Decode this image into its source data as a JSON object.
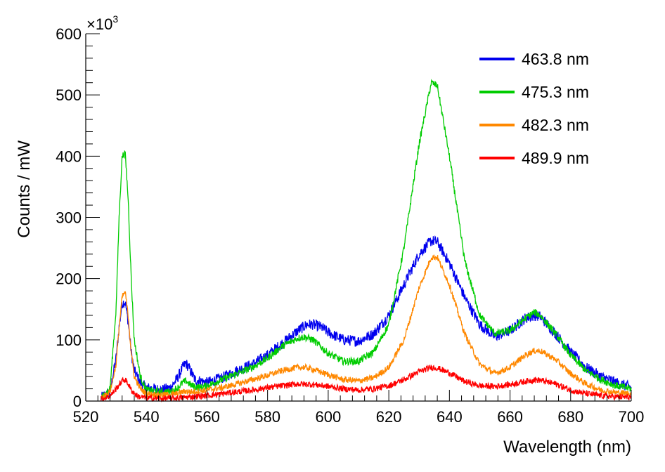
{
  "chart_data": {
    "type": "line",
    "xlabel": "Wavelength (nm)",
    "ylabel": "Counts / mW",
    "xlim": [
      520,
      700
    ],
    "ylim": [
      0,
      600
    ],
    "y_multiplier": {
      "base": "×10",
      "exponent": "3"
    },
    "x_ticks": [
      520,
      540,
      560,
      580,
      600,
      620,
      640,
      660,
      680,
      700
    ],
    "y_ticks": [
      0,
      100,
      200,
      300,
      400,
      500,
      600
    ],
    "grid": false,
    "legend_position": "top-right",
    "series": [
      {
        "name": "463.8 nm",
        "color": "#0000ee",
        "noise": 9,
        "points": [
          [
            525,
            5
          ],
          [
            528,
            15
          ],
          [
            530,
            70
          ],
          [
            531,
            120
          ],
          [
            532,
            160
          ],
          [
            533,
            162
          ],
          [
            534,
            130
          ],
          [
            535,
            80
          ],
          [
            536,
            50
          ],
          [
            538,
            30
          ],
          [
            540,
            22
          ],
          [
            545,
            18
          ],
          [
            548,
            22
          ],
          [
            550,
            35
          ],
          [
            552,
            55
          ],
          [
            553,
            62
          ],
          [
            554,
            55
          ],
          [
            556,
            35
          ],
          [
            560,
            30
          ],
          [
            565,
            38
          ],
          [
            570,
            50
          ],
          [
            575,
            60
          ],
          [
            580,
            75
          ],
          [
            585,
            95
          ],
          [
            590,
            115
          ],
          [
            593,
            125
          ],
          [
            595,
            125
          ],
          [
            598,
            120
          ],
          [
            600,
            112
          ],
          [
            605,
            100
          ],
          [
            610,
            98
          ],
          [
            615,
            110
          ],
          [
            620,
            140
          ],
          [
            625,
            190
          ],
          [
            630,
            240
          ],
          [
            634,
            262
          ],
          [
            636,
            260
          ],
          [
            640,
            225
          ],
          [
            645,
            170
          ],
          [
            650,
            125
          ],
          [
            655,
            105
          ],
          [
            660,
            115
          ],
          [
            665,
            135
          ],
          [
            668,
            140
          ],
          [
            670,
            138
          ],
          [
            675,
            110
          ],
          [
            680,
            80
          ],
          [
            685,
            55
          ],
          [
            690,
            40
          ],
          [
            695,
            30
          ],
          [
            700,
            22
          ]
        ]
      },
      {
        "name": "475.3 nm",
        "color": "#00cc00",
        "noise": 6,
        "points": [
          [
            525,
            5
          ],
          [
            528,
            20
          ],
          [
            530,
            150
          ],
          [
            531,
            300
          ],
          [
            532,
            400
          ],
          [
            533,
            405
          ],
          [
            534,
            330
          ],
          [
            535,
            200
          ],
          [
            536,
            100
          ],
          [
            538,
            40
          ],
          [
            540,
            18
          ],
          [
            545,
            15
          ],
          [
            548,
            15
          ],
          [
            550,
            20
          ],
          [
            552,
            30
          ],
          [
            553,
            33
          ],
          [
            555,
            25
          ],
          [
            558,
            22
          ],
          [
            560,
            25
          ],
          [
            565,
            35
          ],
          [
            570,
            45
          ],
          [
            575,
            55
          ],
          [
            580,
            70
          ],
          [
            585,
            90
          ],
          [
            590,
            103
          ],
          [
            592,
            105
          ],
          [
            595,
            100
          ],
          [
            600,
            78
          ],
          [
            605,
            65
          ],
          [
            610,
            65
          ],
          [
            615,
            80
          ],
          [
            620,
            125
          ],
          [
            625,
            250
          ],
          [
            630,
            420
          ],
          [
            634,
            520
          ],
          [
            636,
            515
          ],
          [
            640,
            400
          ],
          [
            645,
            230
          ],
          [
            650,
            140
          ],
          [
            655,
            110
          ],
          [
            660,
            115
          ],
          [
            665,
            135
          ],
          [
            668,
            145
          ],
          [
            670,
            140
          ],
          [
            675,
            110
          ],
          [
            680,
            75
          ],
          [
            685,
            50
          ],
          [
            690,
            35
          ],
          [
            695,
            25
          ],
          [
            700,
            20
          ]
        ]
      },
      {
        "name": "482.3 nm",
        "color": "#ff8800",
        "noise": 5,
        "points": [
          [
            525,
            5
          ],
          [
            528,
            15
          ],
          [
            530,
            60
          ],
          [
            531,
            120
          ],
          [
            532,
            170
          ],
          [
            533,
            178
          ],
          [
            534,
            140
          ],
          [
            535,
            80
          ],
          [
            536,
            40
          ],
          [
            538,
            20
          ],
          [
            540,
            12
          ],
          [
            545,
            10
          ],
          [
            550,
            12
          ],
          [
            552,
            15
          ],
          [
            553,
            16
          ],
          [
            555,
            15
          ],
          [
            560,
            18
          ],
          [
            565,
            22
          ],
          [
            570,
            28
          ],
          [
            575,
            35
          ],
          [
            580,
            42
          ],
          [
            585,
            50
          ],
          [
            590,
            55
          ],
          [
            592,
            55
          ],
          [
            595,
            52
          ],
          [
            600,
            43
          ],
          [
            605,
            35
          ],
          [
            610,
            33
          ],
          [
            615,
            38
          ],
          [
            620,
            55
          ],
          [
            625,
            100
          ],
          [
            630,
            185
          ],
          [
            634,
            235
          ],
          [
            636,
            235
          ],
          [
            640,
            190
          ],
          [
            645,
            110
          ],
          [
            650,
            60
          ],
          [
            655,
            45
          ],
          [
            660,
            55
          ],
          [
            665,
            75
          ],
          [
            668,
            82
          ],
          [
            670,
            82
          ],
          [
            675,
            68
          ],
          [
            680,
            45
          ],
          [
            685,
            28
          ],
          [
            690,
            18
          ],
          [
            695,
            14
          ],
          [
            700,
            12
          ]
        ]
      },
      {
        "name": "489.9 nm",
        "color": "#ff0000",
        "noise": 5,
        "points": [
          [
            525,
            3
          ],
          [
            528,
            8
          ],
          [
            530,
            20
          ],
          [
            532,
            33
          ],
          [
            533,
            35
          ],
          [
            534,
            28
          ],
          [
            535,
            18
          ],
          [
            537,
            8
          ],
          [
            540,
            5
          ],
          [
            545,
            4
          ],
          [
            550,
            5
          ],
          [
            555,
            7
          ],
          [
            560,
            9
          ],
          [
            565,
            12
          ],
          [
            570,
            15
          ],
          [
            575,
            18
          ],
          [
            580,
            22
          ],
          [
            585,
            25
          ],
          [
            590,
            28
          ],
          [
            595,
            27
          ],
          [
            600,
            24
          ],
          [
            605,
            20
          ],
          [
            610,
            18
          ],
          [
            615,
            20
          ],
          [
            620,
            25
          ],
          [
            625,
            35
          ],
          [
            630,
            48
          ],
          [
            634,
            55
          ],
          [
            636,
            54
          ],
          [
            640,
            46
          ],
          [
            645,
            32
          ],
          [
            650,
            25
          ],
          [
            655,
            24
          ],
          [
            660,
            27
          ],
          [
            665,
            32
          ],
          [
            668,
            35
          ],
          [
            670,
            34
          ],
          [
            675,
            28
          ],
          [
            680,
            18
          ],
          [
            685,
            12
          ],
          [
            690,
            9
          ],
          [
            695,
            7
          ],
          [
            700,
            6
          ]
        ]
      }
    ]
  }
}
